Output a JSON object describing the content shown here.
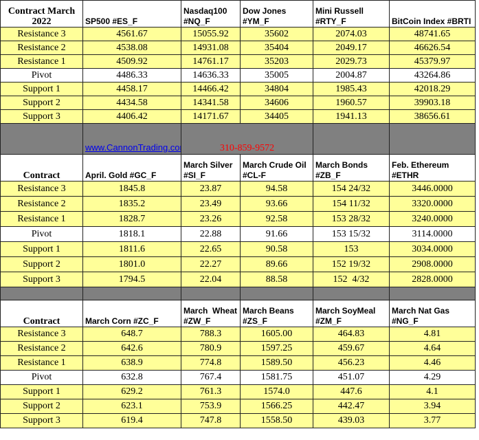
{
  "sections": [
    {
      "header": [
        "Contract March 2022",
        "SP500 #ES_F",
        "Nasdaq100 #NQ_F",
        "Dow Jones #YM_F",
        "Mini Russell #RTY_F",
        "BitCoin Index #BRTI"
      ],
      "rows": [
        [
          "Resistance 3",
          "4561.67",
          "15055.92",
          "35602",
          "2074.03",
          "48741.65"
        ],
        [
          "Resistance 2",
          "4538.08",
          "14931.08",
          "35404",
          "2049.17",
          "46626.54"
        ],
        [
          "Resistance 1",
          "4509.92",
          "14761.17",
          "35203",
          "2029.73",
          "45379.97"
        ],
        [
          "Pivot",
          "4486.33",
          "14636.33",
          "35005",
          "2004.87",
          "43264.86"
        ],
        [
          "Support 1",
          "4458.17",
          "14466.42",
          "34804",
          "1985.43",
          "42018.29"
        ],
        [
          "Support 2",
          "4434.58",
          "14341.58",
          "34606",
          "1960.57",
          "39903.18"
        ],
        [
          "Support 3",
          "4406.42",
          "14171.67",
          "34405",
          "1941.13",
          "38656.61"
        ]
      ]
    },
    {
      "header": [
        "Contract",
        "April. Gold #GC_F",
        "March Silver #SI_F",
        "March Crude Oil #CL-F",
        "March Bonds #ZB_F",
        "Feb. Ethereum #ETHR"
      ],
      "rows": [
        [
          "Resistance 3",
          "1845.8",
          "23.87",
          "94.58",
          "154 24/32",
          "3446.0000"
        ],
        [
          "Resistance 2",
          "1835.2",
          "23.49",
          "93.66",
          "154 11/32",
          "3320.0000"
        ],
        [
          "Resistance 1",
          "1828.7",
          "23.26",
          "92.58",
          "153 28/32",
          "3240.0000"
        ],
        [
          "Pivot",
          "1818.1",
          "22.88",
          "91.66",
          "153 15/32",
          "3114.0000"
        ],
        [
          "Support 1",
          "1811.6",
          "22.65",
          "90.58",
          "153",
          "3034.0000"
        ],
        [
          "Support 2",
          "1801.0",
          "22.27",
          "89.66",
          "152 19/32",
          "2908.0000"
        ],
        [
          "Support 3",
          "1794.5",
          "22.04",
          "88.58",
          "152  4/32",
          "2828.0000"
        ]
      ]
    },
    {
      "header": [
        "Contract",
        "March Corn #ZC_F",
        "March  Wheat #ZW_F",
        "March Beans #ZS_F",
        "March SoyMeal #ZM_F",
        "March Nat Gas #NG_F"
      ],
      "rows": [
        [
          "Resistance 3",
          "648.7",
          "788.3",
          "1605.00",
          "464.83",
          "4.81"
        ],
        [
          "Resistance 2",
          "642.6",
          "780.9",
          "1597.25",
          "459.67",
          "4.64"
        ],
        [
          "Resistance 1",
          "638.9",
          "774.8",
          "1589.50",
          "456.23",
          "4.46"
        ],
        [
          "Pivot",
          "632.8",
          "767.4",
          "1581.75",
          "451.07",
          "4.29"
        ],
        [
          "Support 1",
          "629.2",
          "761.3",
          "1574.0",
          "447.6",
          "4.1"
        ],
        [
          "Support 2",
          "623.1",
          "753.9",
          "1566.25",
          "442.47",
          "3.94"
        ],
        [
          "Support 3",
          "619.4",
          "747.8",
          "1558.50",
          "439.03",
          "3.77"
        ]
      ]
    }
  ],
  "separator": {
    "link": "www.CannonTrading.com",
    "phone": "310-859-9572"
  }
}
